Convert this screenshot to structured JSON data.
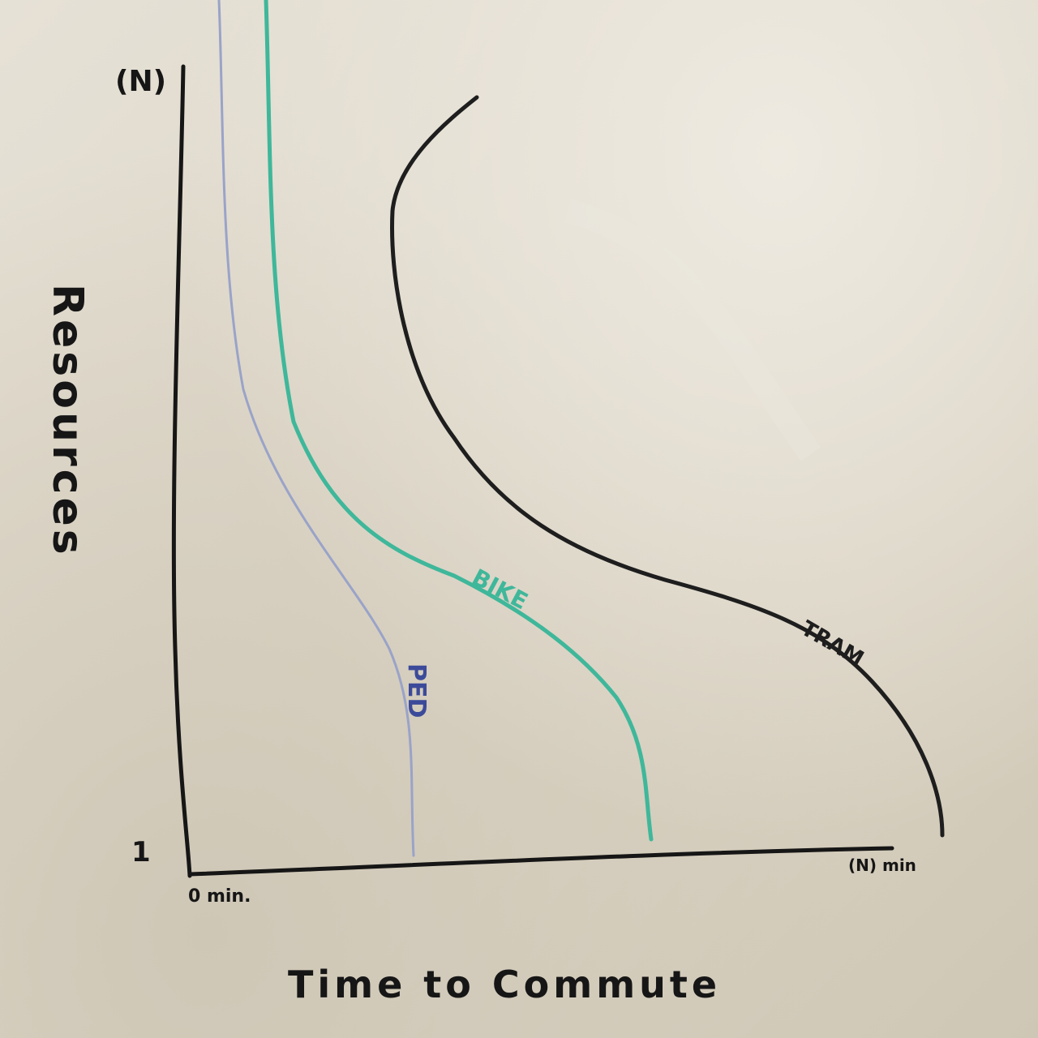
{
  "whiteboard": {
    "y_axis": {
      "label": "Resources",
      "top_label": "(N)",
      "bottom_label": "1"
    },
    "x_axis": {
      "label": "Time to Commute",
      "start_label": "0 min.",
      "end_label": "(N) min"
    },
    "curves": [
      {
        "name": "PED",
        "color": "#9aa3c8"
      },
      {
        "name": "BIKE",
        "color": "#3fb79a"
      },
      {
        "name": "TRAM",
        "color": "#1e1e1e"
      }
    ]
  }
}
